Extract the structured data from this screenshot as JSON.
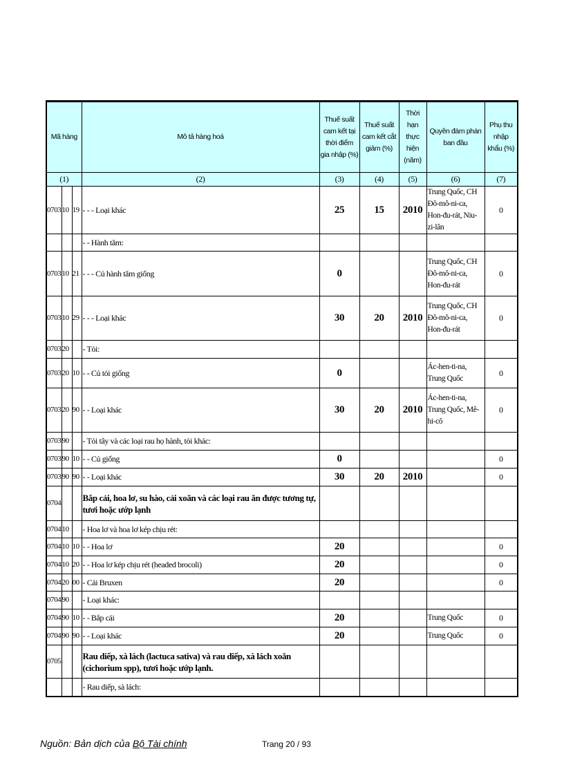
{
  "headers": {
    "code": "Mã hàng",
    "desc": "Mô tả hàng hoá",
    "rate_join": "Thuế suất cam kết tại thời điểm gia nhập (%)",
    "rate_cut": "Thuế suất cam kết cắt giảm (%)",
    "period": "Thời hạn thực hiện (năm)",
    "rights": "Quyền đàm phán ban đầu",
    "surcharge": "Phụ thu nhập khẩu (%)"
  },
  "col_numbers": [
    "(1)",
    "(2)",
    "(3)",
    "(4)",
    "(5)",
    "(6)",
    "(7)"
  ],
  "rows": [
    {
      "c1": "0703",
      "c2": "10",
      "c3": "19",
      "desc": "- - - Loại khác",
      "r3": "25",
      "r4": "15",
      "r5": "2010",
      "r6": "Trung Quốc, CH Đô-mô-ni-ca, Hon-đu-rát, Niu-zi-lân",
      "r7": "0"
    },
    {
      "c1": "",
      "c2": "",
      "c3": "",
      "desc": "- - Hành tăm:",
      "r3": "",
      "r4": "",
      "r5": "",
      "r6": "",
      "r7": ""
    },
    {
      "c1": "0703",
      "c2": "10",
      "c3": "21",
      "desc": "- - - Củ hành tăm giống",
      "r3": "0",
      "r4": "",
      "r5": "",
      "r6": "Trung Quốc, CH Đô-mô-ni-ca, Hon-đu-rát",
      "r7": "0"
    },
    {
      "c1": "0703",
      "c2": "10",
      "c3": "29",
      "desc": "- - - Loại khác",
      "r3": "30",
      "r4": "20",
      "r5": "2010",
      "r6": "Trung Quốc, CH Đô-mô-ni-ca, Hon-đu-rát",
      "r7": "0"
    },
    {
      "c1": "0703",
      "c2": "20",
      "c3": "",
      "desc": "- Tỏi:",
      "r3": "",
      "r4": "",
      "r5": "",
      "r6": "",
      "r7": ""
    },
    {
      "c1": "0703",
      "c2": "20",
      "c3": "10",
      "desc": "- - Củ tỏi giống",
      "r3": "0",
      "r4": "",
      "r5": "",
      "r6": "Ác-hen-ti-na, Trung Quốc",
      "r7": "0"
    },
    {
      "c1": "0703",
      "c2": "20",
      "c3": "90",
      "desc": "- - Loại khác",
      "r3": "30",
      "r4": "20",
      "r5": "2010",
      "r6": "Ác-hen-ti-na, Trung Quốc, Mê-hi-cô",
      "r7": "0"
    },
    {
      "c1": "0703",
      "c2": "90",
      "c3": "",
      "desc": "- Tỏi tây và các loại rau họ hành, tỏi khác:",
      "r3": "",
      "r4": "",
      "r5": "",
      "r6": "",
      "r7": ""
    },
    {
      "c1": "0703",
      "c2": "90",
      "c3": "10",
      "desc": "- - Củ giống",
      "r3": "0",
      "r4": "",
      "r5": "",
      "r6": "",
      "r7": "0"
    },
    {
      "c1": "0703",
      "c2": "90",
      "c3": "90",
      "desc": "- - Loại khác",
      "r3": "30",
      "r4": "20",
      "r5": "2010",
      "r6": "",
      "r7": "0"
    },
    {
      "c1": "0704",
      "c2": "",
      "c3": "",
      "desc": "Bắp cải, hoa lơ, su hào, cải xoăn và các loại rau ăn được tương tự, tươi hoặc ướp lạnh",
      "bold": true,
      "r3": "",
      "r4": "",
      "r5": "",
      "r6": "",
      "r7": ""
    },
    {
      "c1": "0704",
      "c2": "10",
      "c3": "",
      "desc": "- Hoa lơ và hoa lơ kép chịu rét:",
      "r3": "",
      "r4": "",
      "r5": "",
      "r6": "",
      "r7": ""
    },
    {
      "c1": "0704",
      "c2": "10",
      "c3": "10",
      "desc": "- - Hoa lơ",
      "r3": "20",
      "r4": "",
      "r5": "",
      "r6": "",
      "r7": "0"
    },
    {
      "c1": "0704",
      "c2": "10",
      "c3": "20",
      "desc": "- - Hoa lơ kép chịu rét (headed brocoli)",
      "r3": "20",
      "r4": "",
      "r5": "",
      "r6": "",
      "r7": "0"
    },
    {
      "c1": "0704",
      "c2": "20",
      "c3": "00",
      "desc": "- Cải Bruxen",
      "r3": "20",
      "r4": "",
      "r5": "",
      "r6": "",
      "r7": "0"
    },
    {
      "c1": "0704",
      "c2": "90",
      "c3": "",
      "desc": "- Loại khác:",
      "r3": "",
      "r4": "",
      "r5": "",
      "r6": "",
      "r7": ""
    },
    {
      "c1": "0704",
      "c2": "90",
      "c3": "10",
      "desc": "- - Bắp cải",
      "r3": "20",
      "r4": "",
      "r5": "",
      "r6": "Trung Quốc",
      "r7": "0"
    },
    {
      "c1": "0704",
      "c2": "90",
      "c3": "90",
      "desc": "- - Loại khác",
      "r3": "20",
      "r4": "",
      "r5": "",
      "r6": "Trung Quốc",
      "r7": "0"
    },
    {
      "c1": "0705",
      "c2": "",
      "c3": "",
      "desc": "Rau diếp, xà lách (lactuca sativa) và rau diếp, xà lách xoăn (cichorium spp), tươi hoặc ướp lạnh.",
      "bold": true,
      "r3": "",
      "r4": "",
      "r5": "",
      "r6": "",
      "r7": ""
    },
    {
      "c1": "",
      "c2": "",
      "c3": "",
      "desc": "- Rau diếp, sà lách:",
      "r3": "",
      "r4": "",
      "r5": "",
      "r6": "",
      "r7": ""
    }
  ],
  "footer": {
    "source_prefix": "Nguồn: Bản dịch của ",
    "source_org": "Bộ Tài chính",
    "page": "Trang 20 / 93"
  },
  "colors": {
    "header_bg": "#ccffff"
  }
}
